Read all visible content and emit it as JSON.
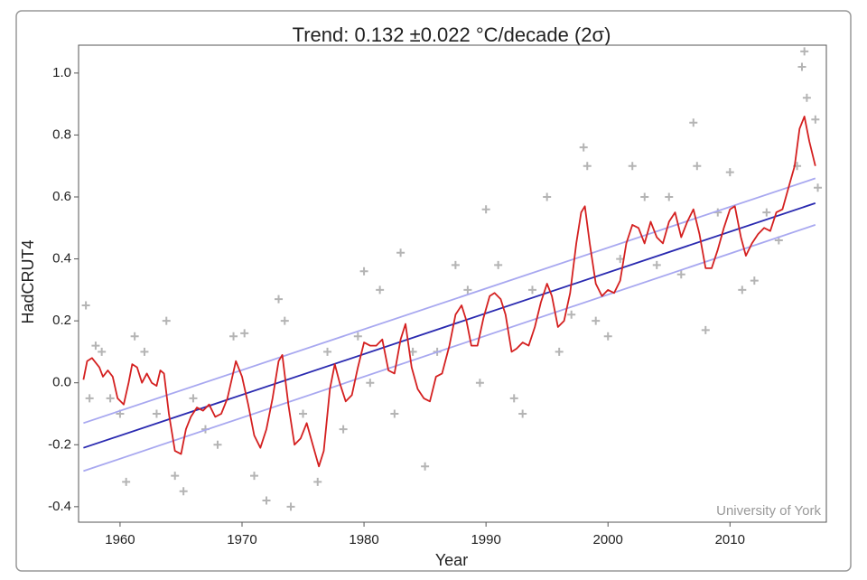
{
  "chart_data": {
    "type": "scatter",
    "title": "Trend: 0.132 ±0.022 °C/decade (2σ)",
    "y_label": "HadCRUT4",
    "x_label": "Year",
    "watermark": "University of York",
    "xlim": [
      1956.6,
      2017.9
    ],
    "ylim": [
      -0.45,
      1.09
    ],
    "xticks": [
      1960,
      1970,
      1980,
      1990,
      2000,
      2010
    ],
    "yticks": [
      -0.4,
      -0.2,
      {
        "value": 0,
        "label": "0.0"
      },
      0.2,
      0.4,
      0.6,
      0.8,
      {
        "value": 1,
        "label": "1.0"
      }
    ],
    "series": [
      {
        "type": "scatter",
        "color": "#b4b4b4",
        "x": [
          1957.2,
          1957.5,
          1958.0,
          1958.5,
          1959.2,
          1960.0,
          1960.5,
          1961.2,
          1962.0,
          1963.0,
          1963.8,
          1964.5,
          1965.2,
          1966.0,
          1967.0,
          1968.0,
          1969.3,
          1970.2,
          1971.0,
          1972.0,
          1973.0,
          1973.5,
          1974.0,
          1975.0,
          1976.2,
          1977.0,
          1978.3,
          1979.5,
          1980.0,
          1980.5,
          1981.3,
          1982.5,
          1983.0,
          1984.0,
          1985.0,
          1986.0,
          1987.5,
          1988.5,
          1989.5,
          1990.0,
          1991.0,
          1992.3,
          1993.0,
          1993.8,
          1995.0,
          1996.0,
          1997.0,
          1998.0,
          1998.3,
          1999.0,
          2000.0,
          2001.0,
          2002.0,
          2003.0,
          2004.0,
          2005.0,
          2006.0,
          2007.0,
          2007.3,
          2008.0,
          2009.0,
          2010.0,
          2011.0,
          2012.0,
          2013.0,
          2014.0,
          2015.5,
          2015.9,
          2016.1,
          2016.3,
          2017.0,
          2017.2
        ],
        "values": [
          0.25,
          -0.05,
          0.12,
          0.1,
          -0.05,
          -0.1,
          -0.32,
          0.15,
          0.1,
          -0.1,
          0.2,
          -0.3,
          -0.35,
          -0.05,
          -0.15,
          -0.2,
          0.15,
          0.16,
          -0.3,
          -0.38,
          0.27,
          0.2,
          -0.4,
          -0.1,
          -0.32,
          0.1,
          -0.15,
          0.15,
          0.36,
          0.0,
          0.3,
          -0.1,
          0.42,
          0.1,
          -0.27,
          0.1,
          0.38,
          0.3,
          0.0,
          0.56,
          0.38,
          -0.05,
          -0.1,
          0.3,
          0.6,
          0.1,
          0.22,
          0.76,
          0.7,
          0.2,
          0.15,
          0.4,
          0.7,
          0.6,
          0.38,
          0.6,
          0.35,
          0.84,
          0.7,
          0.17,
          0.55,
          0.68,
          0.3,
          0.33,
          0.55,
          0.46,
          0.7,
          1.02,
          1.07,
          0.92,
          0.85,
          0.63
        ]
      },
      {
        "type": "line",
        "color": "#a8a8f0",
        "x": [
          1957,
          2017
        ],
        "values": [
          -0.13,
          0.66
        ]
      },
      {
        "type": "line",
        "color": "#a8a8f0",
        "x": [
          1957,
          2017
        ],
        "values": [
          -0.285,
          0.51
        ]
      },
      {
        "type": "line",
        "color": "#2a2ab0",
        "x": [
          1957,
          2017
        ],
        "values": [
          -0.21,
          0.58
        ]
      },
      {
        "type": "line",
        "color": "#d42020",
        "x": [
          1957.0,
          1957.3,
          1957.7,
          1958.3,
          1958.6,
          1959.0,
          1959.4,
          1959.8,
          1960.3,
          1960.7,
          1961.0,
          1961.4,
          1961.8,
          1962.2,
          1962.6,
          1963.0,
          1963.3,
          1963.6,
          1964.0,
          1964.5,
          1965.0,
          1965.4,
          1965.8,
          1966.3,
          1966.8,
          1967.3,
          1967.8,
          1968.3,
          1968.8,
          1969.5,
          1970.0,
          1970.5,
          1971.0,
          1971.5,
          1972.0,
          1972.5,
          1973.0,
          1973.3,
          1973.8,
          1974.3,
          1974.8,
          1975.3,
          1975.8,
          1976.3,
          1976.7,
          1977.2,
          1977.6,
          1978.0,
          1978.5,
          1979.0,
          1979.5,
          1980.0,
          1980.5,
          1981.0,
          1981.5,
          1982.0,
          1982.5,
          1983.0,
          1983.4,
          1983.9,
          1984.4,
          1984.9,
          1985.4,
          1985.9,
          1986.4,
          1987.0,
          1987.5,
          1988.0,
          1988.4,
          1988.8,
          1989.3,
          1989.8,
          1990.3,
          1990.7,
          1991.2,
          1991.6,
          1992.1,
          1992.5,
          1993.0,
          1993.5,
          1994.0,
          1994.5,
          1995.0,
          1995.4,
          1995.9,
          1996.4,
          1996.9,
          1997.4,
          1997.8,
          1998.1,
          1998.5,
          1999.0,
          1999.5,
          2000.0,
          2000.5,
          2001.0,
          2001.5,
          2002.0,
          2002.5,
          2003.0,
          2003.5,
          2004.0,
          2004.5,
          2005.0,
          2005.5,
          2006.0,
          2006.5,
          2007.0,
          2007.5,
          2008.0,
          2008.5,
          2009.0,
          2009.5,
          2010.0,
          2010.4,
          2010.9,
          2011.3,
          2011.8,
          2012.3,
          2012.8,
          2013.3,
          2013.8,
          2014.3,
          2014.8,
          2015.3,
          2015.7,
          2016.1,
          2016.5,
          2017.0
        ],
        "values": [
          0.01,
          0.07,
          0.08,
          0.05,
          0.02,
          0.04,
          0.02,
          -0.05,
          -0.07,
          0.0,
          0.06,
          0.05,
          0.0,
          0.03,
          0.0,
          -0.01,
          0.04,
          0.03,
          -0.1,
          -0.22,
          -0.23,
          -0.15,
          -0.11,
          -0.08,
          -0.09,
          -0.07,
          -0.11,
          -0.1,
          -0.05,
          0.07,
          0.02,
          -0.07,
          -0.17,
          -0.21,
          -0.15,
          -0.05,
          0.07,
          0.09,
          -0.07,
          -0.2,
          -0.18,
          -0.13,
          -0.2,
          -0.27,
          -0.22,
          -0.02,
          0.06,
          0.0,
          -0.06,
          -0.04,
          0.05,
          0.13,
          0.12,
          0.12,
          0.14,
          0.04,
          0.03,
          0.14,
          0.19,
          0.05,
          -0.02,
          -0.05,
          -0.06,
          0.02,
          0.03,
          0.12,
          0.22,
          0.25,
          0.2,
          0.12,
          0.12,
          0.21,
          0.28,
          0.29,
          0.27,
          0.22,
          0.1,
          0.11,
          0.13,
          0.12,
          0.18,
          0.26,
          0.32,
          0.28,
          0.18,
          0.2,
          0.29,
          0.45,
          0.55,
          0.57,
          0.45,
          0.32,
          0.28,
          0.3,
          0.29,
          0.33,
          0.45,
          0.51,
          0.5,
          0.45,
          0.52,
          0.47,
          0.45,
          0.52,
          0.55,
          0.47,
          0.52,
          0.56,
          0.48,
          0.37,
          0.37,
          0.43,
          0.5,
          0.56,
          0.57,
          0.47,
          0.41,
          0.45,
          0.48,
          0.5,
          0.49,
          0.55,
          0.56,
          0.63,
          0.7,
          0.82,
          0.86,
          0.78,
          0.7
        ]
      }
    ]
  }
}
